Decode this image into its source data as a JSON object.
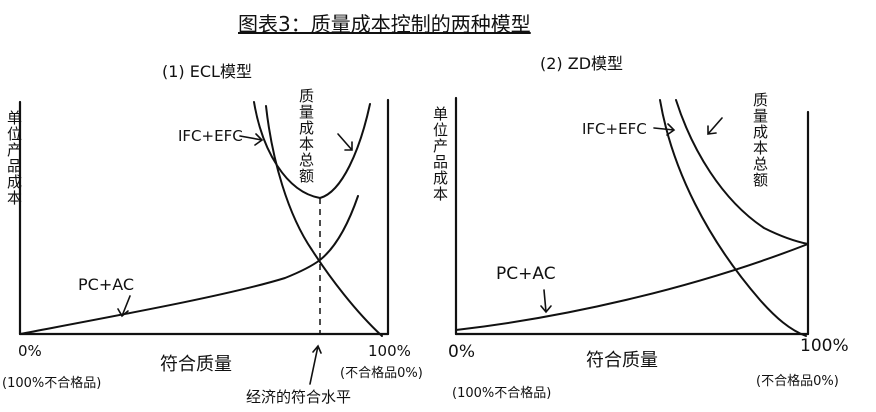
{
  "title": "图表3：质量成本控制的两种模型",
  "left": {
    "subtitle": "(1)  ECL模型",
    "ylabel": "单位产品成本",
    "label_ifc": "IFC+EFC",
    "label_total": "质量成本总额",
    "label_pc": "PC+AC",
    "x_start": "0%",
    "x_end": "100%",
    "xlabel": "符合质量",
    "left_note": "(100%不合格品)",
    "right_note": "(不合格品0%)",
    "econ_label": "经济的符合水平"
  },
  "right": {
    "subtitle": "(2)  ZD模型",
    "ylabel": "单位产品成本",
    "label_ifc": "IFC+EFC",
    "label_total": "质量成本总额",
    "label_pc": "PC+AC",
    "x_start": "0%",
    "x_end": "100%",
    "xlabel": "符合质量",
    "left_note": "(100%不合格品)",
    "right_note": "(不合格品0%)"
  },
  "colors": {
    "ink": "#111111",
    "background": "#ffffff"
  }
}
